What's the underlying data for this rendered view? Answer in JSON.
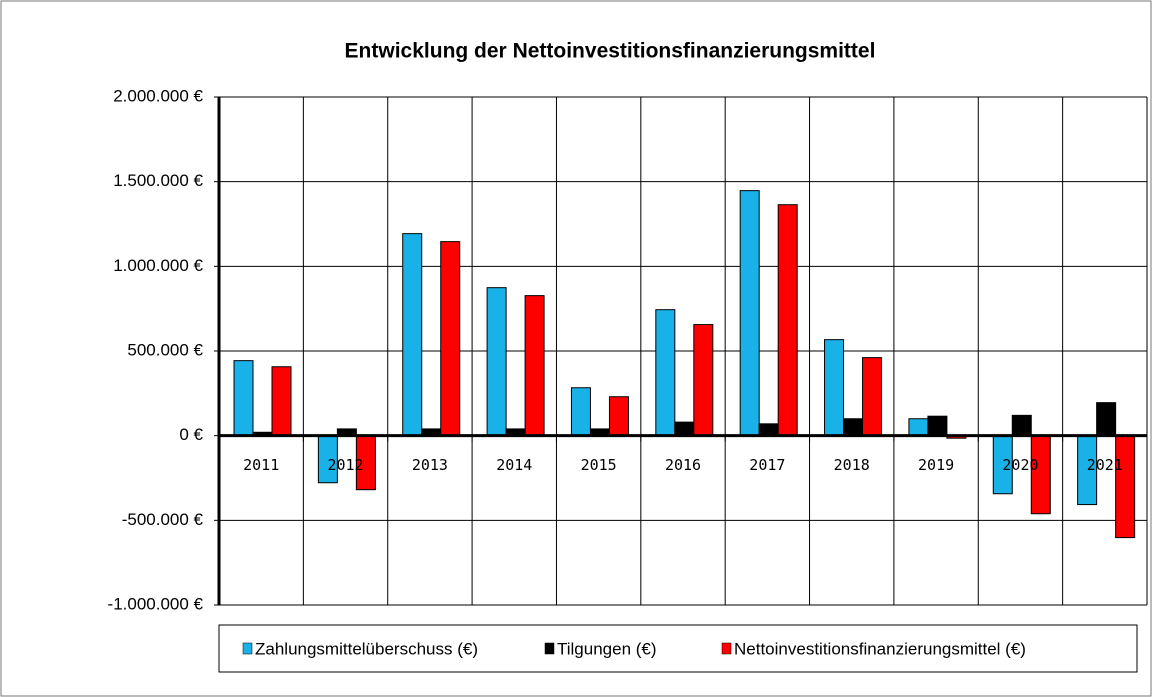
{
  "chart_data": {
    "type": "bar",
    "title": "Entwicklung der Nettoinvestitionsfinanzierungsmittel",
    "categories": [
      "2011",
      "2012",
      "2013",
      "2014",
      "2015",
      "2016",
      "2017",
      "2018",
      "2019",
      "2020",
      "2021"
    ],
    "series": [
      {
        "name": "Zahlungsmittelüberschuss (€)",
        "color": "#19b2e8",
        "values": [
          443000,
          -278000,
          1193000,
          874000,
          283000,
          744000,
          1447000,
          567000,
          100000,
          -343000,
          -407000
        ]
      },
      {
        "name": "Tilgungen (€)",
        "color": "#000000",
        "values": [
          20000,
          40000,
          40000,
          40000,
          40000,
          80000,
          70000,
          100000,
          115000,
          120000,
          195000
        ]
      },
      {
        "name": "Nettoinvestitionsfinanzierungsmittel (€)",
        "color": "#ff0000",
        "values": [
          407000,
          -319000,
          1146000,
          827000,
          230000,
          656000,
          1364000,
          461000,
          -15000,
          -461000,
          -602000
        ]
      }
    ],
    "ylim": [
      -1000000,
      2000000
    ],
    "yticks": [
      {
        "value": -1000000,
        "label": "-1.000.000 €"
      },
      {
        "value": -500000,
        "label": "-500.000 €"
      },
      {
        "value": 0,
        "label": "0 €"
      },
      {
        "value": 500000,
        "label": "500.000 €"
      },
      {
        "value": 1000000,
        "label": "1.000.000 €"
      },
      {
        "value": 1500000,
        "label": "1.500.000 €"
      },
      {
        "value": 2000000,
        "label": "2.000.000 €"
      }
    ],
    "grid": true,
    "legend": "bottom"
  }
}
